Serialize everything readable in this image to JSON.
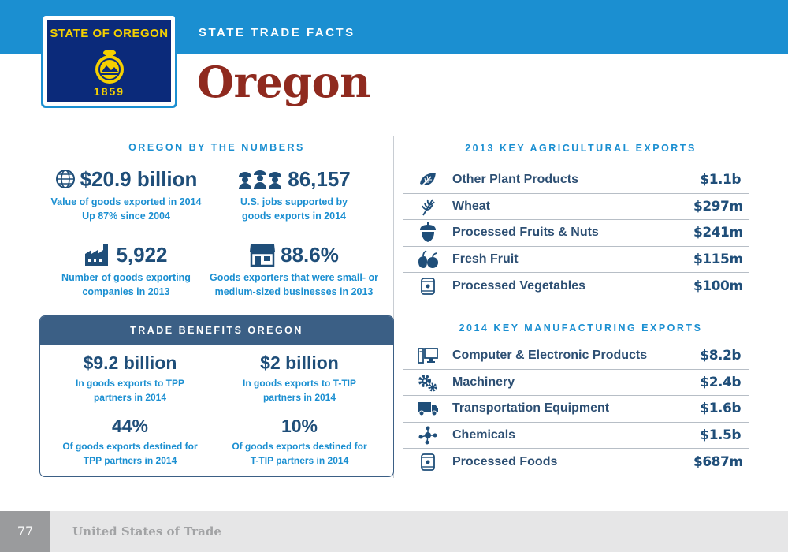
{
  "header": {
    "kicker": "STATE TRADE FACTS",
    "state": "Oregon",
    "flag": {
      "top_text": "STATE OF OREGON",
      "year": "1859",
      "colors": {
        "field": "#0b2a7a",
        "text": "#f5d000"
      }
    }
  },
  "by_numbers": {
    "title": "OREGON BY THE NUMBERS",
    "stats": [
      {
        "icon": "globe-icon",
        "value": "$20.9 billion",
        "desc_line1": "Value of goods exported in 2014",
        "desc_line2": "Up 87% since 2004"
      },
      {
        "icon": "workers-icon",
        "value": "86,157",
        "desc_line1": "U.S. jobs supported by",
        "desc_line2": "goods exports in 2014"
      },
      {
        "icon": "factory-icon",
        "value": "5,922",
        "desc_line1": "Number of goods exporting",
        "desc_line2": "companies in 2013"
      },
      {
        "icon": "storefront-icon",
        "value": "88.6%",
        "desc_line1": "Goods exporters that were small- or",
        "desc_line2": "medium-sized businesses in 2013"
      }
    ]
  },
  "benefits": {
    "title": "TRADE BENEFITS OREGON",
    "items": [
      {
        "value": "$9.2 billion",
        "desc_line1": "In goods exports to TPP",
        "desc_line2": "partners in 2014"
      },
      {
        "value": "$2 billion",
        "desc_line1": "In goods exports to T-TIP",
        "desc_line2": "partners in 2014"
      },
      {
        "value": "44%",
        "desc_line1": "Of goods exports destined for",
        "desc_line2": "TPP partners in 2014"
      },
      {
        "value": "10%",
        "desc_line1": "Of goods exports destined for",
        "desc_line2": "T-TIP partners in 2014"
      }
    ]
  },
  "agricultural": {
    "title": "2013 KEY AGRICULTURAL EXPORTS",
    "items": [
      {
        "icon": "leaf-icon",
        "label": "Other Plant Products",
        "value": "$1.1b"
      },
      {
        "icon": "wheat-icon",
        "label": "Wheat",
        "value": "$297m"
      },
      {
        "icon": "acorn-icon",
        "label": "Processed Fruits & Nuts",
        "value": "$241m"
      },
      {
        "icon": "fruit-icon",
        "label": "Fresh Fruit",
        "value": "$115m"
      },
      {
        "icon": "can-icon",
        "label": "Processed Vegetables",
        "value": "$100m"
      }
    ]
  },
  "manufacturing": {
    "title": "2014 KEY MANUFACTURING EXPORTS",
    "items": [
      {
        "icon": "computer-icon",
        "label": "Computer & Electronic Products",
        "value": "$8.2b"
      },
      {
        "icon": "gears-icon",
        "label": "Machinery",
        "value": "$2.4b"
      },
      {
        "icon": "truck-icon",
        "label": "Transportation Equipment",
        "value": "$1.6b"
      },
      {
        "icon": "molecule-icon",
        "label": "Chemicals",
        "value": "$1.5b"
      },
      {
        "icon": "can-icon",
        "label": "Processed Foods",
        "value": "$687m"
      }
    ]
  },
  "footer": {
    "page": "77",
    "title": "United States of Trade"
  }
}
